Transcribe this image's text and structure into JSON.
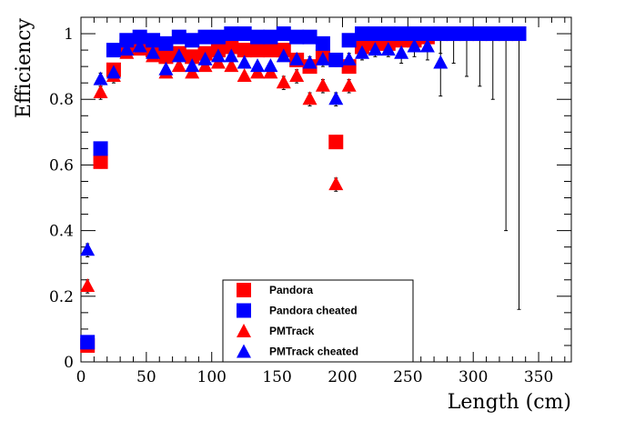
{
  "chart_data": {
    "type": "scatter",
    "title": "",
    "xlabel": "Length (cm)",
    "ylabel": "Efficiency",
    "xlim": [
      0,
      375
    ],
    "ylim": [
      0,
      1.05
    ],
    "x_ticks": [
      "0",
      "50",
      "100",
      "150",
      "200",
      "250",
      "300",
      "350"
    ],
    "y_ticks": [
      "0",
      "0.2",
      "0.4",
      "0.6",
      "0.8",
      "1"
    ],
    "legend_position": "bottom-center",
    "series": [
      {
        "name": "Pandora",
        "marker": "square",
        "color": "#ff0000",
        "x": [
          5,
          15,
          25,
          35,
          45,
          55,
          65,
          75,
          85,
          95,
          105,
          115,
          125,
          135,
          145,
          155,
          165,
          175,
          185,
          195,
          205,
          215,
          225,
          235,
          245,
          255,
          265,
          275,
          285,
          295,
          305,
          315,
          325,
          335
        ],
        "y": [
          0.05,
          0.61,
          0.89,
          0.96,
          0.97,
          0.95,
          0.93,
          0.94,
          0.93,
          0.94,
          0.95,
          0.96,
          0.95,
          0.95,
          0.95,
          0.95,
          0.92,
          0.9,
          0.93,
          0.67,
          0.9,
          0.96,
          0.97,
          0.97,
          0.98,
          0.98,
          0.99,
          1.0,
          1.0,
          1.0,
          1.0,
          1.0,
          1.0,
          1.0
        ],
        "err": [
          0.01,
          0.02,
          0.02,
          0.01,
          0.01,
          0.01,
          0.01,
          0.01,
          0.01,
          0.01,
          0.01,
          0.01,
          0.01,
          0.01,
          0.01,
          0.01,
          0.01,
          0.01,
          0.01,
          0.02,
          0.01,
          0.01,
          0.01,
          0.01,
          0.01,
          0.01,
          0.01,
          0.01,
          0.01,
          0.01,
          0.01,
          0.01,
          0.01,
          0.01
        ]
      },
      {
        "name": "Pandora cheated",
        "marker": "square",
        "color": "#0000ff",
        "x": [
          5,
          15,
          25,
          35,
          45,
          55,
          65,
          75,
          85,
          95,
          105,
          115,
          125,
          135,
          145,
          155,
          165,
          175,
          185,
          195,
          205,
          215,
          225,
          235,
          245,
          255,
          265,
          275,
          285,
          295,
          305,
          315,
          325,
          335
        ],
        "y": [
          0.06,
          0.65,
          0.95,
          0.98,
          0.99,
          0.98,
          0.97,
          0.99,
          0.98,
          0.99,
          0.99,
          1.0,
          1.0,
          0.99,
          0.99,
          1.0,
          0.99,
          0.99,
          0.97,
          0.92,
          0.98,
          1.0,
          1.0,
          1.0,
          1.0,
          1.0,
          1.0,
          1.0,
          1.0,
          1.0,
          1.0,
          1.0,
          1.0,
          1.0
        ],
        "err": [
          0.01,
          0.02,
          0.01,
          0.01,
          0.01,
          0.01,
          0.01,
          0.01,
          0.01,
          0.01,
          0.01,
          0.01,
          0.01,
          0.01,
          0.01,
          0.01,
          0.01,
          0.01,
          0.01,
          0.02,
          0.01,
          0.01,
          0.01,
          0.01,
          0.01,
          0.03,
          0.04,
          0.06,
          0.09,
          0.13,
          0.16,
          0.2,
          0.6,
          0.84
        ]
      },
      {
        "name": "PMTrack",
        "marker": "triangle",
        "color": "#ff0000",
        "x": [
          5,
          15,
          25,
          35,
          45,
          55,
          65,
          75,
          85,
          95,
          105,
          115,
          125,
          135,
          145,
          155,
          165,
          175,
          185,
          195,
          205
        ],
        "y": [
          0.23,
          0.82,
          0.87,
          0.94,
          0.95,
          0.93,
          0.88,
          0.9,
          0.88,
          0.9,
          0.91,
          0.9,
          0.87,
          0.88,
          0.88,
          0.85,
          0.87,
          0.8,
          0.84,
          0.54,
          0.84
        ],
        "err": [
          0.02,
          0.02,
          0.02,
          0.01,
          0.01,
          0.01,
          0.01,
          0.01,
          0.01,
          0.01,
          0.01,
          0.01,
          0.01,
          0.01,
          0.01,
          0.02,
          0.02,
          0.02,
          0.02,
          0.02,
          0.02
        ]
      },
      {
        "name": "PMTrack cheated",
        "marker": "triangle",
        "color": "#0000ff",
        "x": [
          5,
          15,
          25,
          35,
          45,
          55,
          65,
          75,
          85,
          95,
          105,
          115,
          125,
          135,
          145,
          155,
          165,
          175,
          185,
          195,
          205,
          215,
          225,
          235,
          245,
          255,
          265,
          275
        ],
        "y": [
          0.34,
          0.86,
          0.88,
          0.95,
          0.96,
          0.94,
          0.89,
          0.93,
          0.9,
          0.92,
          0.93,
          0.93,
          0.91,
          0.9,
          0.9,
          0.93,
          0.92,
          0.91,
          0.92,
          0.8,
          0.92,
          0.94,
          0.95,
          0.95,
          0.94,
          0.96,
          0.96,
          0.91
        ],
        "err": [
          0.02,
          0.02,
          0.02,
          0.01,
          0.01,
          0.01,
          0.01,
          0.01,
          0.01,
          0.01,
          0.01,
          0.01,
          0.01,
          0.01,
          0.01,
          0.01,
          0.01,
          0.02,
          0.02,
          0.02,
          0.02,
          0.02,
          0.02,
          0.02,
          0.03,
          0.03,
          0.04,
          0.1
        ]
      }
    ]
  }
}
